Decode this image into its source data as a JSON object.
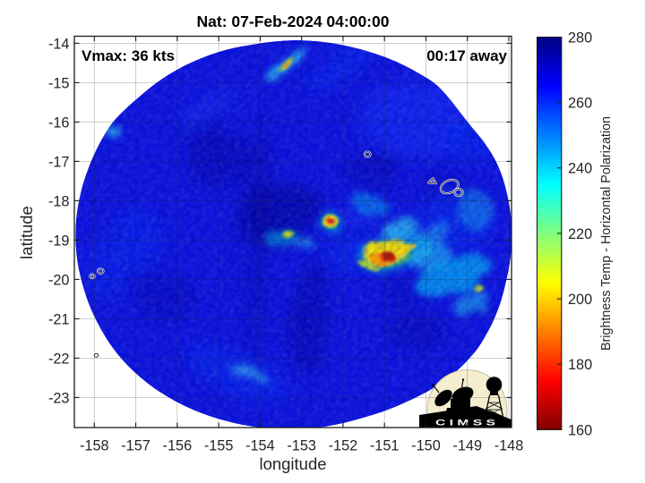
{
  "page": {
    "background": "#ffffff"
  },
  "chart_data": {
    "type": "heatmap",
    "title": "Nat: 07-Feb-2024 04:00:00",
    "xlabel": "longitude",
    "ylabel": "latitude",
    "grid": true,
    "legend_position": "right-colorbar",
    "annotations": {
      "vmax": "Vmax: 36 kts",
      "time_away": "00:17 away"
    },
    "x_ticks": [
      -158,
      -157,
      -156,
      -155,
      -154,
      -153,
      -152,
      -151,
      -150,
      -149,
      -148
    ],
    "y_ticks": [
      -14,
      -15,
      -16,
      -17,
      -18,
      -19,
      -20,
      -21,
      -22,
      -23
    ],
    "x_range": [
      -158.48,
      -147.93
    ],
    "y_range": [
      -23.76,
      -13.82
    ],
    "colorbar": {
      "label": "Brightness Temp - Horizontal Polarization",
      "range": [
        160,
        280
      ],
      "ticks": [
        160,
        180,
        200,
        220,
        240,
        260,
        280
      ],
      "colormap": "jet-reversed",
      "stops": [
        {
          "value": 280,
          "color": "#000083"
        },
        {
          "value": 265,
          "color": "#0000ff"
        },
        {
          "value": 235,
          "color": "#00ffff"
        },
        {
          "value": 205,
          "color": "#ffff00"
        },
        {
          "value": 175,
          "color": "#ff0000"
        },
        {
          "value": 160,
          "color": "#800000"
        }
      ]
    },
    "swath": {
      "center": [
        -153.2,
        -18.85
      ],
      "radius_deg": [
        5.24,
        4.91
      ],
      "base_color": "#0c14e0",
      "base_temp_K": 268,
      "boundary": [
        [
          -158.456,
          -18.881
        ],
        [
          -158.436,
          -18.451
        ],
        [
          -158.376,
          -18.024
        ],
        [
          -158.281,
          -17.602
        ],
        [
          -158.15,
          -17.188
        ],
        [
          -157.988,
          -16.783
        ],
        [
          -157.792,
          -16.389
        ],
        [
          -157.56,
          -16.012
        ],
        [
          -157.258,
          -15.68
        ],
        [
          -156.932,
          -15.372
        ],
        [
          -156.594,
          -15.076
        ],
        [
          -156.23,
          -14.81
        ],
        [
          -155.84,
          -14.576
        ],
        [
          -155.428,
          -14.38
        ],
        [
          -154.999,
          -14.218
        ],
        [
          -154.556,
          -14.099
        ],
        [
          -154.104,
          -14.016
        ],
        [
          -153.649,
          -13.953
        ],
        [
          -153.189,
          -13.923
        ],
        [
          -152.727,
          -13.938
        ],
        [
          -152.269,
          -13.994
        ],
        [
          -151.819,
          -14.088
        ],
        [
          -151.375,
          -14.211
        ],
        [
          -150.943,
          -14.366
        ],
        [
          -150.526,
          -14.558
        ],
        [
          -150.13,
          -14.786
        ],
        [
          -149.755,
          -15.045
        ],
        [
          -149.454,
          -15.38
        ],
        [
          -149.188,
          -15.734
        ],
        [
          -148.929,
          -16.085
        ],
        [
          -148.658,
          -16.429
        ],
        [
          -148.418,
          -16.796
        ],
        [
          -148.227,
          -17.188
        ],
        [
          -148.095,
          -17.601
        ],
        [
          -148.002,
          -18.024
        ],
        [
          -147.944,
          -18.451
        ],
        [
          -147.927,
          -18.881
        ],
        [
          -147.945,
          -19.311
        ],
        [
          -148.003,
          -19.738
        ],
        [
          -148.089,
          -20.162
        ],
        [
          -148.198,
          -20.584
        ],
        [
          -148.348,
          -20.997
        ],
        [
          -148.54,
          -21.397
        ],
        [
          -148.77,
          -21.781
        ],
        [
          -149.06,
          -22.129
        ],
        [
          -149.386,
          -22.446
        ],
        [
          -149.752,
          -22.72
        ],
        [
          -150.147,
          -22.953
        ],
        [
          -150.557,
          -23.154
        ],
        [
          -150.973,
          -23.335
        ],
        [
          -151.403,
          -23.481
        ],
        [
          -151.837,
          -23.609
        ],
        [
          -152.28,
          -23.714
        ],
        [
          -152.732,
          -23.779
        ],
        [
          -153.189,
          -23.803
        ],
        [
          -153.647,
          -23.795
        ],
        [
          -154.104,
          -23.749
        ],
        [
          -154.556,
          -23.666
        ],
        [
          -155.0,
          -23.546
        ],
        [
          -155.432,
          -23.391
        ],
        [
          -155.849,
          -23.2
        ],
        [
          -156.246,
          -22.973
        ],
        [
          -156.621,
          -22.715
        ],
        [
          -156.964,
          -22.42
        ],
        [
          -157.277,
          -22.097
        ],
        [
          -157.553,
          -21.746
        ],
        [
          -157.786,
          -21.369
        ],
        [
          -157.984,
          -20.977
        ],
        [
          -158.15,
          -20.574
        ],
        [
          -158.278,
          -20.159
        ],
        [
          -158.376,
          -19.738
        ],
        [
          -158.436,
          -19.311
        ]
      ]
    },
    "features": [
      {
        "name": "dark-dry-slot",
        "layer": "shade",
        "lon": -153.55,
        "lat": -18.3,
        "rx": 1.05,
        "ry": 0.72,
        "rot": -15,
        "color": "#000890",
        "a": 0.55
      },
      {
        "name": "dark-nw",
        "layer": "shade",
        "lon": -154.92,
        "lat": -16.99,
        "rx": 0.95,
        "ry": 0.7,
        "rot": 0,
        "color": "#000a96",
        "a": 0.38
      },
      {
        "name": "dark-south-band",
        "layer": "shade",
        "lon": -152.8,
        "lat": -20.9,
        "rx": 0.45,
        "ry": 1.5,
        "rot": 5,
        "color": "#000a96",
        "a": 0.4
      },
      {
        "name": "dark-north",
        "layer": "shade",
        "lon": -151.31,
        "lat": -17.2,
        "rx": 0.7,
        "ry": 0.5,
        "rot": 0,
        "color": "#000a96",
        "a": 0.33
      },
      {
        "name": "dark-se",
        "layer": "shade",
        "lon": -150.29,
        "lat": -21.31,
        "rx": 0.8,
        "ry": 0.5,
        "rot": 0,
        "color": "#000a96",
        "a": 0.3
      },
      {
        "name": "dark-sw",
        "layer": "shade",
        "lon": -156.3,
        "lat": -20.49,
        "rx": 0.8,
        "ry": 0.6,
        "rot": 0,
        "color": "#000a96",
        "a": 0.28
      },
      {
        "name": "dark-seam",
        "layer": "shade",
        "lon": -154.07,
        "lat": -19.15,
        "rx": 0.35,
        "ry": 3.4,
        "rot": 3,
        "color": "#000a96",
        "a": 0.22
      },
      {
        "name": "dark-nw-edge",
        "layer": "shade",
        "lon": -155.41,
        "lat": -16.31,
        "rx": 0.6,
        "ry": 0.4,
        "rot": 0,
        "color": "#000a96",
        "a": 0.2
      },
      {
        "name": "dark-tahiti",
        "layer": "shade",
        "lon": -149.53,
        "lat": -17.67,
        "rx": 0.5,
        "ry": 0.45,
        "rot": 0,
        "color": "#000a96",
        "a": 0.25
      },
      {
        "name": "dark-blob-south",
        "layer": "shade",
        "lon": -150.55,
        "lat": -20.4,
        "rx": 0.5,
        "ry": 0.35,
        "rot": 0,
        "color": "#000a96",
        "a": 0.25
      },
      {
        "name": "light-ne",
        "layer": "shade",
        "lon": -150.25,
        "lat": -15.9,
        "rx": 1.35,
        "ry": 1.0,
        "rot": 0,
        "color": "#1030ff",
        "a": 0.45
      },
      {
        "name": "light-e",
        "layer": "shade",
        "lon": -149.3,
        "lat": -18.6,
        "rx": 0.9,
        "ry": 0.8,
        "rot": 0,
        "color": "#0038ff",
        "a": 0.35
      },
      {
        "name": "light-s",
        "layer": "shade",
        "lon": -154.51,
        "lat": -22.4,
        "rx": 1.3,
        "ry": 0.5,
        "rot": 22,
        "color": "#0040ff",
        "a": 0.35
      },
      {
        "name": "light-w",
        "layer": "shade",
        "lon": -156.9,
        "lat": -18.99,
        "rx": 0.55,
        "ry": 0.8,
        "rot": 0,
        "color": "#0038ff",
        "a": 0.3
      },
      {
        "name": "light-top-arc",
        "layer": "shade",
        "lon": -151.99,
        "lat": -14.6,
        "rx": 1.0,
        "ry": 0.35,
        "rot": -30,
        "color": "#0040ff",
        "a": 0.35
      },
      {
        "name": "light-nw-edge-streak",
        "layer": "shade",
        "lon": -155.2,
        "lat": -15.7,
        "rx": 0.8,
        "ry": 0.25,
        "rot": -35,
        "color": "#1540ff",
        "a": 0.4
      },
      {
        "name": "light-ene",
        "layer": "shade",
        "lon": -148.99,
        "lat": -16.49,
        "rx": 0.6,
        "ry": 0.5,
        "rot": 0,
        "color": "#0038ff",
        "a": 0.3
      },
      {
        "name": "light-w-edge",
        "layer": "shade",
        "lon": -157.68,
        "lat": -19.72,
        "rx": 0.5,
        "ry": 0.9,
        "rot": 0,
        "color": "#0038ff",
        "a": 0.25
      },
      {
        "name": "light-blob-west",
        "layer": "shade",
        "lon": -151.74,
        "lat": -19.38,
        "rx": 0.6,
        "ry": 0.45,
        "rot": 0,
        "color": "#0040ff",
        "a": 0.3
      },
      {
        "name": "cyan-blob-halo",
        "layer": "cyan",
        "lon": -150.75,
        "lat": -19.3,
        "rx": 0.92,
        "ry": 0.48,
        "rot": -12,
        "color": "#00b4f0",
        "a": 0.55
      },
      {
        "name": "cyan-blob-north",
        "layer": "cyan",
        "lon": -150.61,
        "lat": -18.72,
        "rx": 0.45,
        "ry": 0.22,
        "rot": -15,
        "color": "#30d4f4",
        "a": 0.7
      },
      {
        "name": "cyan-blob-east",
        "layer": "cyan",
        "lon": -149.9,
        "lat": -19.4,
        "rx": 0.5,
        "ry": 0.35,
        "rot": -10,
        "color": "#20ccf4",
        "a": 0.6
      },
      {
        "name": "cyan-east-band",
        "layer": "cyan",
        "lon": -149.37,
        "lat": -19.9,
        "rx": 0.95,
        "ry": 0.42,
        "rot": -22,
        "color": "#00c8f8",
        "a": 0.65
      },
      {
        "name": "cyan-right-edge",
        "layer": "cyan",
        "lon": -148.82,
        "lat": -18.24,
        "rx": 0.45,
        "ry": 0.5,
        "rot": 0,
        "color": "#20c8f0",
        "a": 0.38
      },
      {
        "name": "cyan-arc-nw-of-blob",
        "layer": "cyan",
        "lon": -151.35,
        "lat": -18.1,
        "rx": 0.48,
        "ry": 0.24,
        "rot": 18,
        "color": "#00c0f0",
        "a": 0.45
      },
      {
        "name": "cyan-top-streak",
        "layer": "cyan",
        "lon": -153.36,
        "lat": -14.54,
        "rx": 0.62,
        "ry": 0.13,
        "rot": -38,
        "color": "#30d8f8",
        "a": 0.8
      },
      {
        "name": "cyan-west-spot",
        "layer": "cyan",
        "lon": -153.51,
        "lat": -18.95,
        "rx": 0.36,
        "ry": 0.26,
        "rot": -20,
        "color": "#00b8e8",
        "a": 0.55
      },
      {
        "name": "cyan-dot-sw-streak",
        "layer": "cyan",
        "lon": -153.0,
        "lat": -19.05,
        "rx": 0.35,
        "ry": 0.12,
        "rot": 12,
        "color": "#20c0ee",
        "a": 0.5
      },
      {
        "name": "light-dot-east",
        "layer": "shade",
        "lon": -151.6,
        "lat": -18.35,
        "rx": 0.5,
        "ry": 0.35,
        "rot": 0,
        "color": "#1040ff",
        "a": 0.35
      },
      {
        "name": "cyan-bottom-streak",
        "layer": "cyan",
        "lon": -154.35,
        "lat": -22.35,
        "rx": 0.5,
        "ry": 0.14,
        "rot": 20,
        "color": "#40d8f0",
        "a": 0.55
      },
      {
        "name": "cyan-right-low",
        "layer": "cyan",
        "lon": -148.91,
        "lat": -20.6,
        "rx": 0.45,
        "ry": 0.3,
        "rot": -30,
        "color": "#20c8f0",
        "a": 0.55
      },
      {
        "name": "cyan-left-dash",
        "layer": "cyan",
        "lon": -157.51,
        "lat": -16.26,
        "rx": 0.2,
        "ry": 0.09,
        "rot": -20,
        "color": "#30d0f0",
        "a": 0.8
      },
      {
        "name": "cyan-ne-of-blob",
        "layer": "cyan",
        "lon": -149.9,
        "lat": -18.9,
        "rx": 0.55,
        "ry": 0.22,
        "rot": -30,
        "color": "#20c8f0",
        "a": 0.45
      },
      {
        "name": "blob-green-ring",
        "layer": "warm",
        "lon": -150.96,
        "lat": -19.36,
        "rx": 0.62,
        "ry": 0.36,
        "rot": -10,
        "color": "#38c855",
        "a": 0.85
      },
      {
        "name": "blob-yellow-ring",
        "layer": "warm",
        "lon": -150.98,
        "lat": -19.31,
        "rx": 0.52,
        "ry": 0.31,
        "rot": -12,
        "color": "#ffe400",
        "a": 0.95
      },
      {
        "name": "blob-orange-ring",
        "layer": "fine",
        "lon": -151.09,
        "lat": -19.49,
        "rx": 0.28,
        "ry": 0.17,
        "rot": 15,
        "color": "#ff9800",
        "a": 0.95
      },
      {
        "name": "blob-red-ring",
        "layer": "fine",
        "lon": -150.93,
        "lat": -19.43,
        "rx": 0.2,
        "ry": 0.14,
        "rot": 10,
        "color": "#e02800",
        "a": 1
      },
      {
        "name": "blob-darkred-core",
        "layer": "fine",
        "lon": -150.9,
        "lat": -19.42,
        "rx": 0.12,
        "ry": 0.09,
        "rot": 0,
        "color": "#a81800",
        "a": 1
      },
      {
        "name": "blob-yellow-arm",
        "layer": "fine",
        "lon": -150.48,
        "lat": -19.22,
        "rx": 0.26,
        "ry": 0.1,
        "rot": -25,
        "color": "#ffd800",
        "a": 0.8
      },
      {
        "name": "blob-sw-arc",
        "layer": "fine",
        "lon": -151.38,
        "lat": -19.66,
        "rx": 0.26,
        "ry": 0.09,
        "rot": 20,
        "color": "#c0dc20",
        "a": 0.8
      },
      {
        "name": "dot-cyan-halo",
        "layer": "cyan",
        "lon": -152.3,
        "lat": -18.55,
        "rx": 0.28,
        "ry": 0.26,
        "rot": 0,
        "color": "#00b8e8",
        "a": 0.5
      },
      {
        "name": "dot-green-ring",
        "layer": "fine",
        "lon": -152.3,
        "lat": -18.53,
        "rx": 0.215,
        "ry": 0.2,
        "rot": 0,
        "color": "#30c050",
        "a": 0.9
      },
      {
        "name": "dot-yellow-ring",
        "layer": "fine",
        "lon": -152.3,
        "lat": -18.53,
        "rx": 0.165,
        "ry": 0.15,
        "rot": 0,
        "color": "#ffe000",
        "a": 1
      },
      {
        "name": "dot-orange-ring",
        "layer": "fine",
        "lon": -152.3,
        "lat": -18.53,
        "rx": 0.12,
        "ry": 0.1,
        "rot": 0,
        "color": "#ff7800",
        "a": 1
      },
      {
        "name": "dot-red-core",
        "layer": "fine",
        "lon": -152.3,
        "lat": -18.53,
        "rx": 0.09,
        "ry": 0.07,
        "rot": 0,
        "color": "#e02818",
        "a": 1
      },
      {
        "name": "dot-darkred-center",
        "layer": "fine",
        "lon": -152.31,
        "lat": -18.53,
        "rx": 0.045,
        "ry": 0.035,
        "rot": 0,
        "color": "#c81810",
        "a": 1
      },
      {
        "name": "west-spot-green",
        "layer": "fine",
        "lon": -153.32,
        "lat": -18.86,
        "rx": 0.15,
        "ry": 0.095,
        "rot": -15,
        "color": "#58c838",
        "a": 0.8
      },
      {
        "name": "west-spot-yellow",
        "layer": "fine",
        "lon": -153.32,
        "lat": -18.86,
        "rx": 0.095,
        "ry": 0.05,
        "rot": -15,
        "color": "#eee22a",
        "a": 0.95
      },
      {
        "name": "top-streak-green",
        "layer": "fine",
        "lon": -153.38,
        "lat": -14.53,
        "rx": 0.25,
        "ry": 0.075,
        "rot": -38,
        "color": "#78d040",
        "a": 0.8
      },
      {
        "name": "top-streak-yellow",
        "layer": "fine",
        "lon": -153.38,
        "lat": -14.53,
        "rx": 0.16,
        "ry": 0.05,
        "rot": -38,
        "color": "#ffd810",
        "a": 0.95
      },
      {
        "name": "top-streak-orange",
        "layer": "fine",
        "lon": -153.38,
        "lat": -14.53,
        "rx": 0.09,
        "ry": 0.04,
        "rot": -38,
        "color": "#ff8800",
        "a": 0.9
      },
      {
        "name": "se-spot-green",
        "layer": "fine",
        "lon": -148.73,
        "lat": -20.22,
        "rx": 0.13,
        "ry": 0.1,
        "rot": 0,
        "color": "#8cc832",
        "a": 0.8
      },
      {
        "name": "se-spot-yellow",
        "layer": "fine",
        "lon": -148.73,
        "lat": -20.22,
        "rx": 0.07,
        "ry": 0.05,
        "rot": 0,
        "color": "#ccdc32",
        "a": 0.85
      }
    ],
    "islands": [
      {
        "name": "island-tetiaroa",
        "kind": "ellipse",
        "lon": -151.41,
        "lat": -16.82,
        "rx": 0.07,
        "ry": 0.065,
        "rot": 0
      },
      {
        "name": "island-moorea",
        "kind": "polygon",
        "pts": [
          [
            -149.94,
            -17.54
          ],
          [
            -149.76,
            -17.56
          ],
          [
            -149.83,
            -17.43
          ]
        ]
      },
      {
        "name": "island-tahiti-nui",
        "kind": "ellipse",
        "lon": -149.43,
        "lat": -17.64,
        "rx": 0.225,
        "ry": 0.155,
        "rot": -25
      },
      {
        "name": "island-tahiti-iti",
        "kind": "ellipse",
        "lon": -149.21,
        "lat": -17.79,
        "rx": 0.095,
        "ry": 0.09,
        "rot": 0
      },
      {
        "name": "island-nw-1",
        "kind": "ellipse",
        "lon": -158.05,
        "lat": -19.92,
        "rx": 0.055,
        "ry": 0.05,
        "rot": 0
      },
      {
        "name": "island-nw-2",
        "kind": "ellipse",
        "lon": -157.85,
        "lat": -19.79,
        "rx": 0.07,
        "ry": 0.06,
        "rot": 0
      },
      {
        "name": "island-sw",
        "kind": "ellipse",
        "lon": -157.95,
        "lat": -21.93,
        "rx": 0.05,
        "ry": 0.045,
        "rot": 0
      }
    ],
    "logo": {
      "text": "C I M S S"
    }
  }
}
